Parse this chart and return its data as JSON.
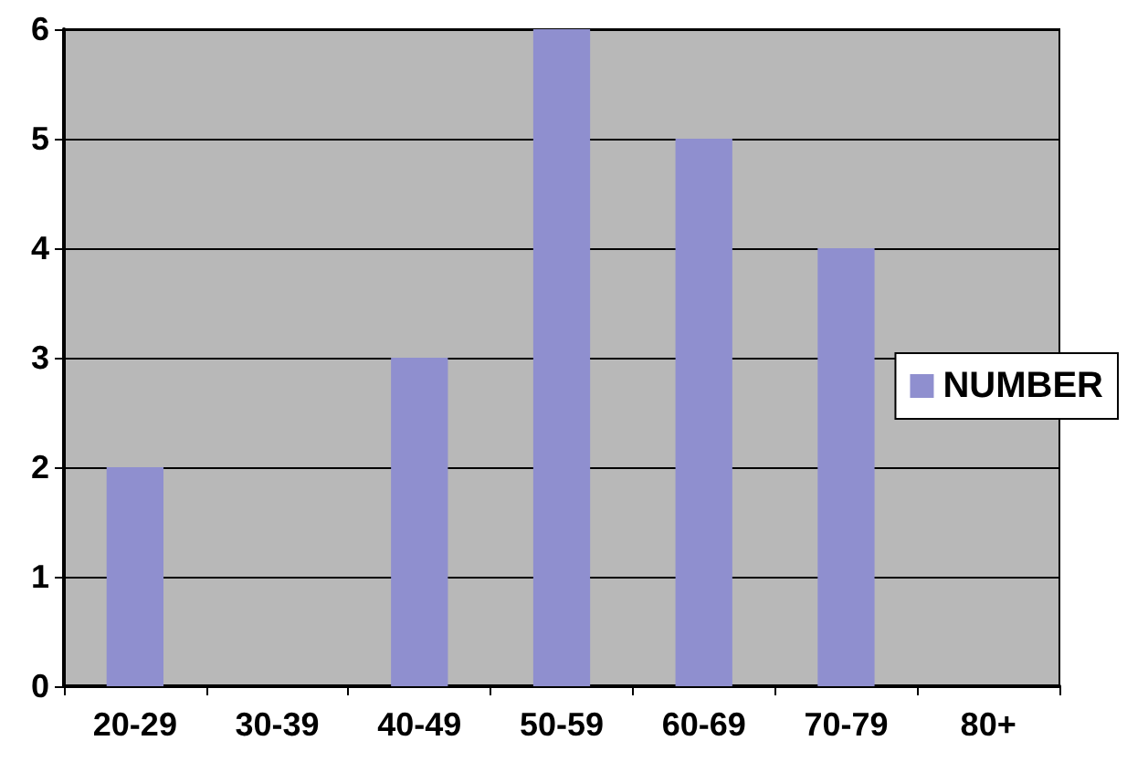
{
  "chart_data": {
    "type": "bar",
    "categories": [
      "20-29",
      "30-39",
      "40-49",
      "50-59",
      "60-69",
      "70-79",
      "80+"
    ],
    "series": [
      {
        "name": "NUMBER",
        "color": "#8f8fcf",
        "values": [
          2,
          0,
          3,
          6,
          5,
          4,
          0
        ]
      }
    ],
    "ylim": [
      0,
      6
    ],
    "yticks": [
      0,
      1,
      2,
      3,
      4,
      5,
      6
    ],
    "grid": "y",
    "legend": "right"
  }
}
